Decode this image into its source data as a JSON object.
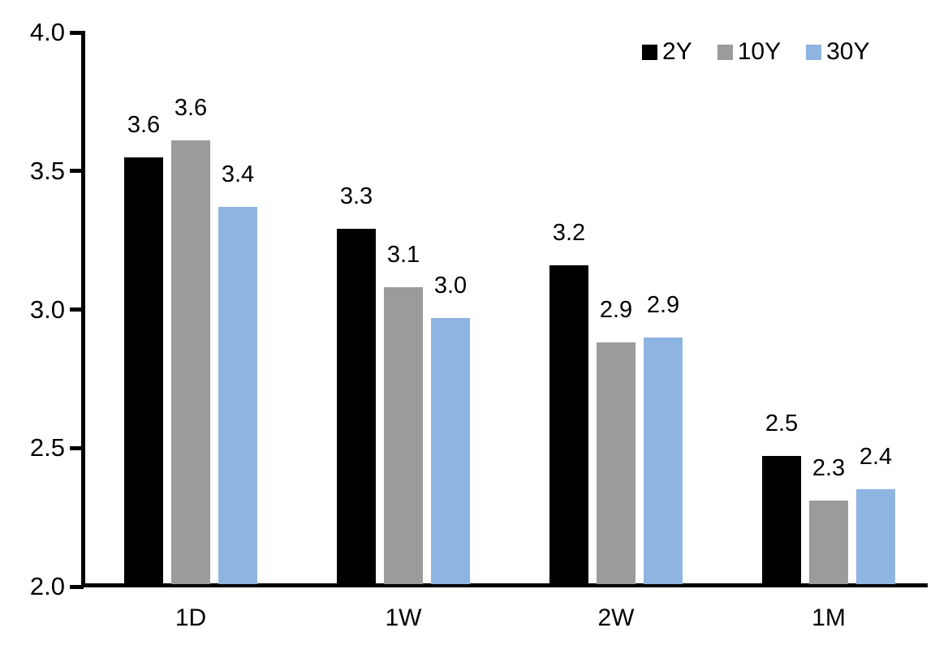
{
  "chart_data": {
    "type": "bar",
    "title": "",
    "categories": [
      "1D",
      "1W",
      "2W",
      "1M"
    ],
    "series": [
      {
        "name": "2Y",
        "color": "#000000",
        "values": [
          3.55,
          3.29,
          3.16,
          2.47
        ],
        "data_labels": [
          "3.6",
          "3.3",
          "3.2",
          "2.5"
        ]
      },
      {
        "name": "10Y",
        "color": "#9B9B9B",
        "values": [
          3.61,
          3.08,
          2.88,
          2.31
        ],
        "data_labels": [
          "3.6",
          "3.1",
          "2.9",
          "2.3"
        ]
      },
      {
        "name": "30Y",
        "color": "#8EB4E2",
        "values": [
          3.37,
          2.97,
          2.9,
          2.35
        ],
        "data_labels": [
          "3.4",
          "3.0",
          "2.9",
          "2.4"
        ]
      }
    ],
    "xlabel": "",
    "ylabel": "",
    "ylim": [
      2.0,
      4.0
    ],
    "yticks": [
      2.0,
      2.5,
      3.0,
      3.5,
      4.0
    ],
    "ytick_labels": [
      "2.0",
      "2.5",
      "3.0",
      "3.5",
      "4.0"
    ],
    "grid": false,
    "axis_color": "#000000",
    "legend": {
      "position": "top-right",
      "entries": [
        "2Y",
        "10Y",
        "30Y"
      ]
    }
  }
}
